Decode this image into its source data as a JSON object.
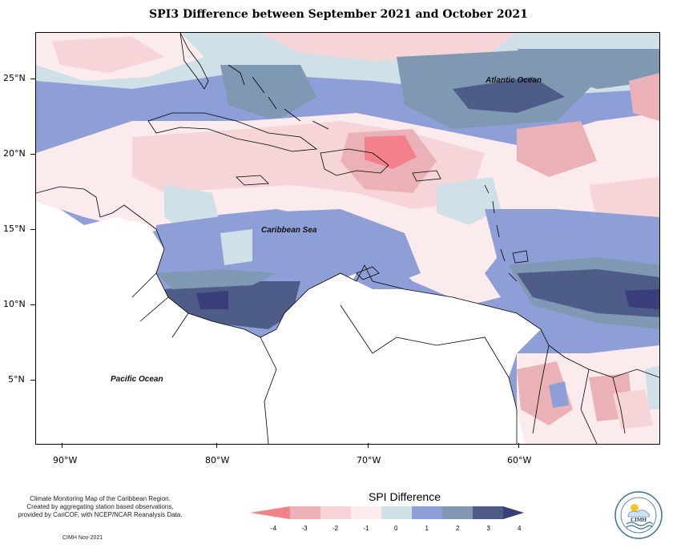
{
  "title": "SPI3 Difference between September 2021 and October 2021",
  "map": {
    "latitude_labels": [
      "25°N",
      "20°N",
      "15°N",
      "10°N",
      "5°N"
    ],
    "longitude_labels": [
      "90°W",
      "80°W",
      "70°W",
      "60°W"
    ],
    "ocean_labels": {
      "atlantic": "Atlantic Ocean",
      "caribbean": "Caribbean Sea",
      "pacific": "Pacific Ocean"
    }
  },
  "legend": {
    "title": "SPI Difference",
    "tick_labels": [
      "-4",
      "-3",
      "-2",
      "-1",
      "0",
      "1",
      "2",
      "3",
      "4"
    ],
    "colors": [
      "#f3808a",
      "#eab2b6",
      "#f6d5d8",
      "#fbebed",
      "#cfe0e6",
      "#8e9fd8",
      "#7f99b2",
      "#4e5c88",
      "#3a3f7c"
    ]
  },
  "credits": {
    "line1": "Climate Monitoring Map of the Caribbean Region.",
    "line2": "Created by aggregating station based observations,",
    "line3": "provided by CariCOF, with NCEP/NCAR Reanalysis Data.",
    "date": "CIMH Nov-2021"
  },
  "logo": {
    "text": "CIMH",
    "icon": "cimh-logo-icon"
  }
}
